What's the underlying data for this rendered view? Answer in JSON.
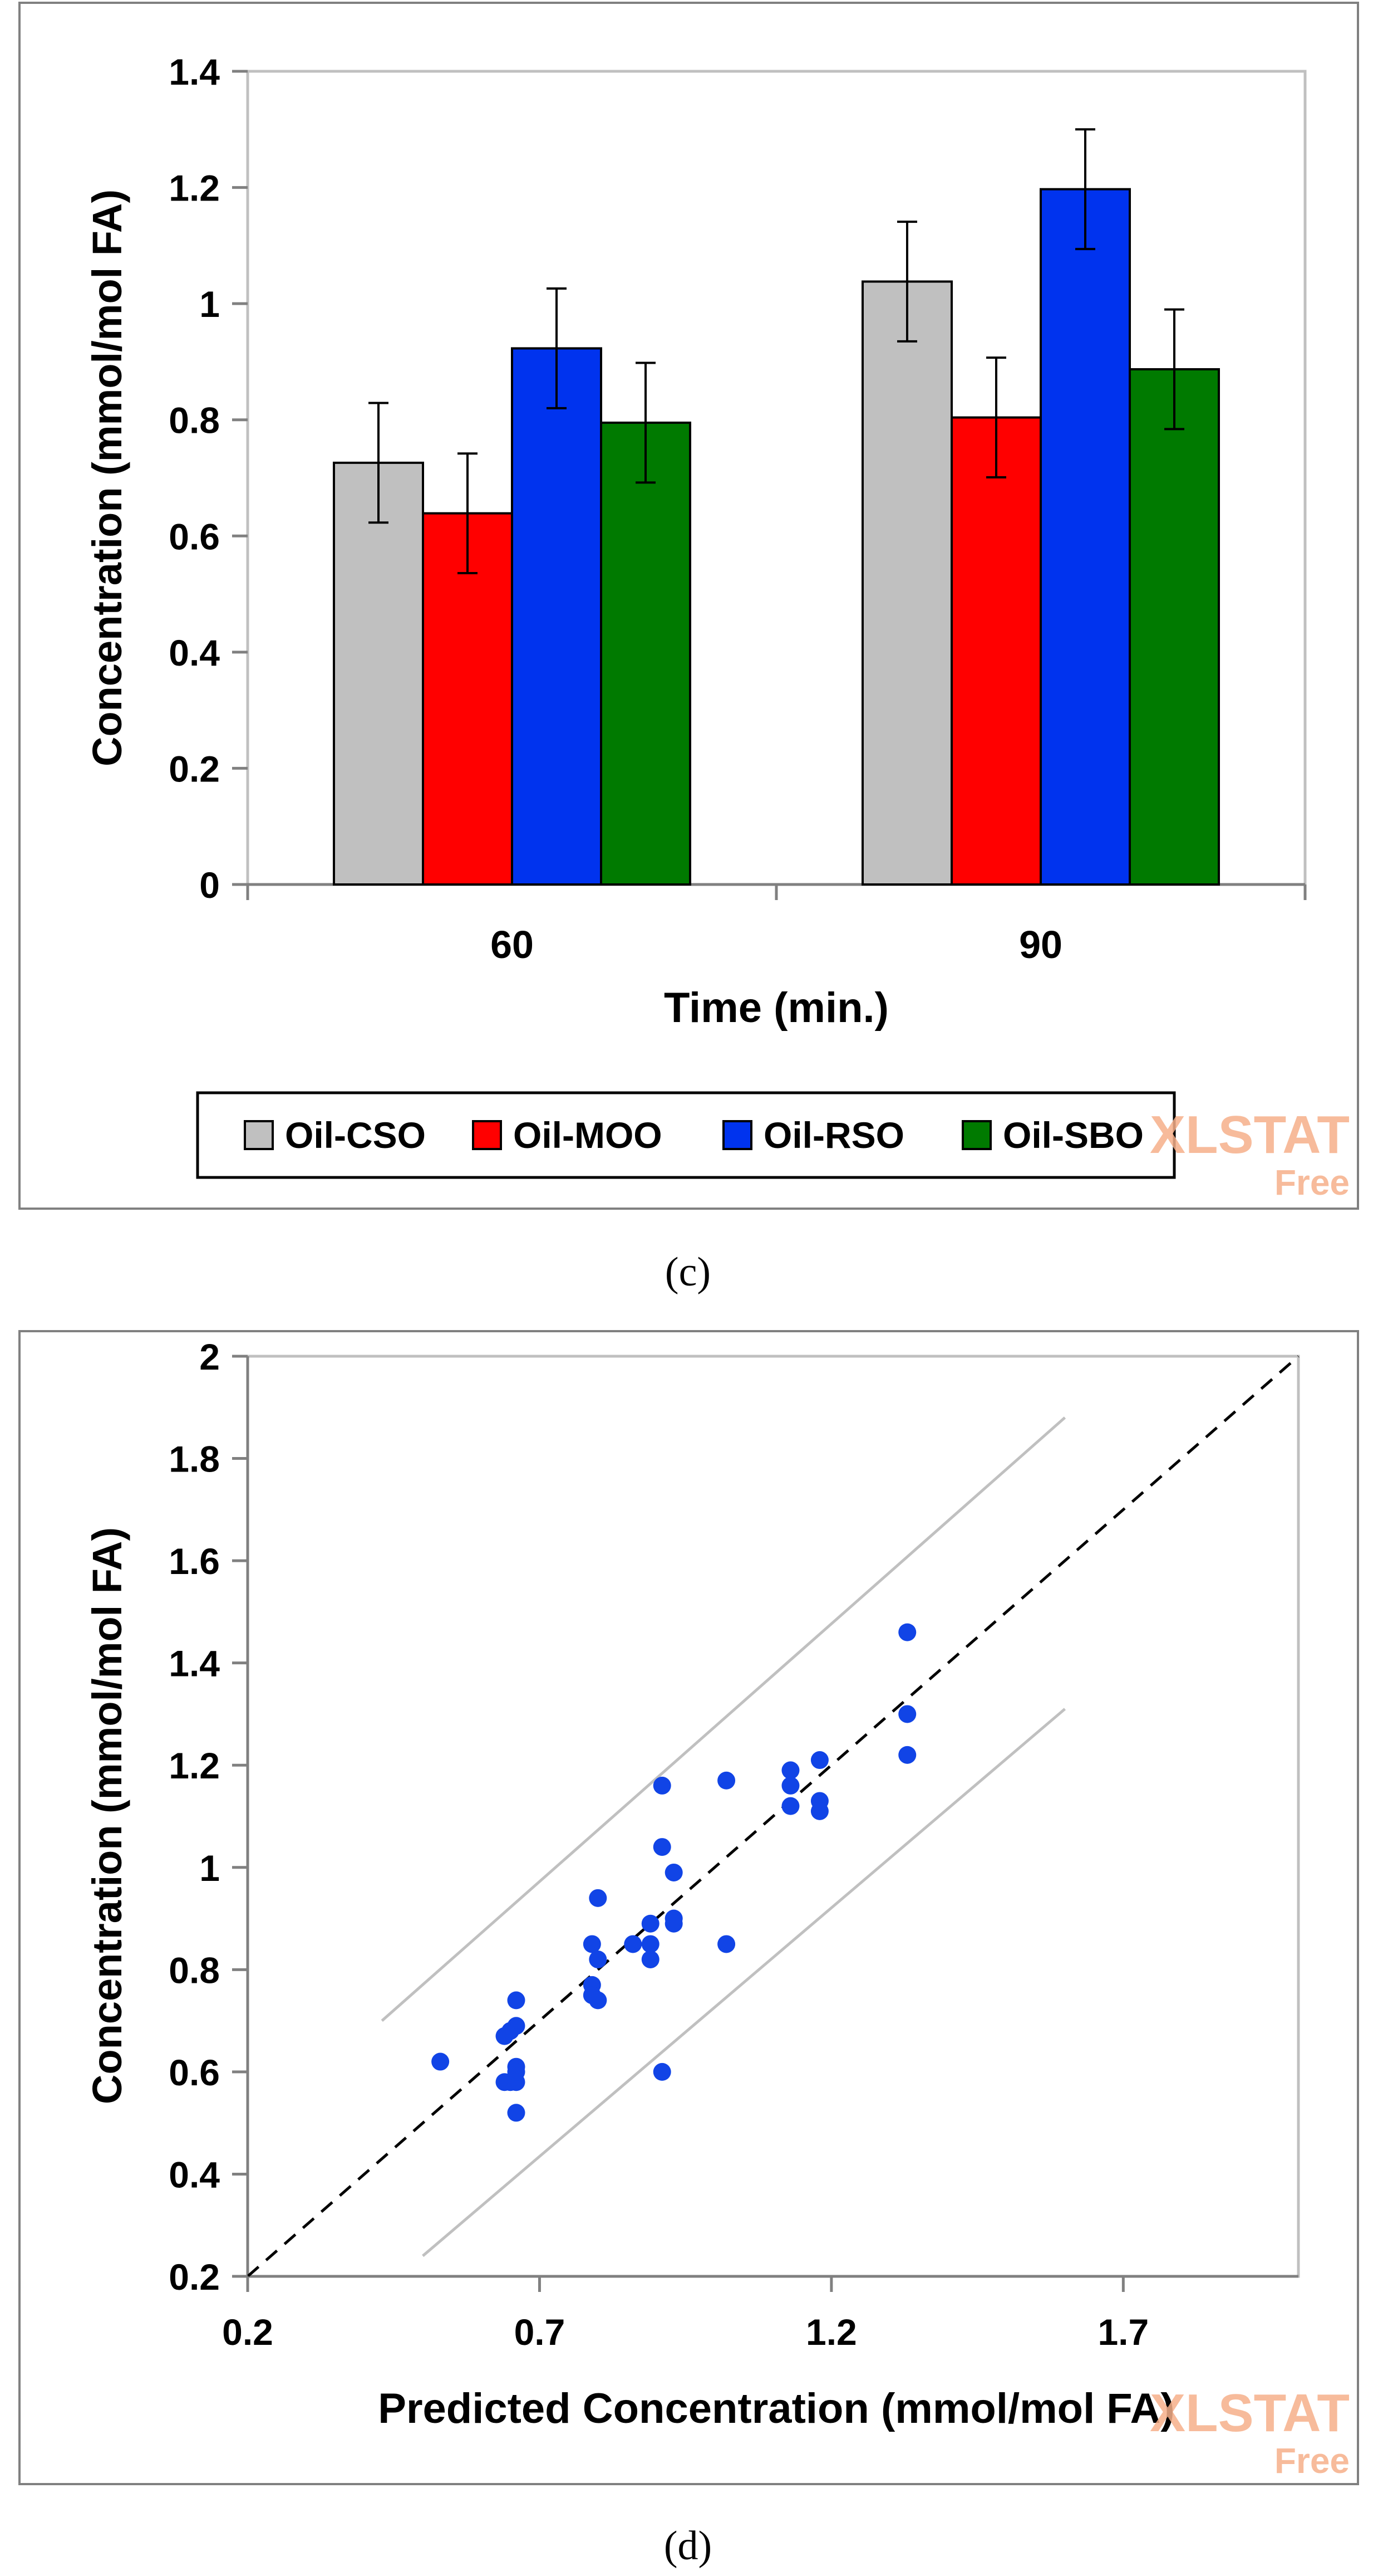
{
  "panel_c": {
    "caption": "(c)",
    "watermark_lines": [
      "XLSTAT",
      "Free"
    ]
  },
  "panel_d": {
    "caption": "(d)",
    "watermark_lines": [
      "XLSTAT",
      "Free"
    ]
  },
  "colors": {
    "Oil-CSO": "#c0c0c0",
    "Oil-MOO": "#ff0000",
    "Oil-RSO": "#0033ee",
    "Oil-SBO": "#007a00",
    "scatter": "#1144e6",
    "bounds": "#c0c0c0"
  },
  "chart_data": [
    {
      "type": "bar",
      "title": "",
      "xlabel": "Time (min.)",
      "ylabel": "Concentration (mmol/mol FA)",
      "categories": [
        "60",
        "90"
      ],
      "ylim": [
        0,
        1.4
      ],
      "yticks": [
        "0",
        "0.2",
        "0.4",
        "0.6",
        "0.8",
        "1",
        "1.2",
        "1.4"
      ],
      "legend_position": "bottom",
      "grid": false,
      "series": [
        {
          "name": "Oil-CSO",
          "values": [
            0.726,
            1.038
          ],
          "errors": [
            0.103,
            0.103
          ]
        },
        {
          "name": "Oil-MOO",
          "values": [
            0.639,
            0.804
          ],
          "errors": [
            0.103,
            0.103
          ]
        },
        {
          "name": "Oil-RSO",
          "values": [
            0.923,
            1.197
          ],
          "errors": [
            0.103,
            0.103
          ]
        },
        {
          "name": "Oil-SBO",
          "values": [
            0.795,
            0.887
          ],
          "errors": [
            0.103,
            0.103
          ]
        }
      ]
    },
    {
      "type": "scatter",
      "title": "",
      "xlabel": "Predicted Concentration (mmol/mol FA)",
      "ylabel": "Concentration (mmol/mol FA)",
      "xlim": [
        0.2,
        2.0
      ],
      "ylim": [
        0.2,
        2.0
      ],
      "xticks": [
        "0.2",
        "0.7",
        "1.2",
        "1.7"
      ],
      "yticks": [
        "0.2",
        "0.4",
        "0.6",
        "0.8",
        "1",
        "1.2",
        "1.4",
        "1.6",
        "1.8",
        "2"
      ],
      "grid": false,
      "identity_line": [
        [
          0.2,
          0.2
        ],
        [
          2.0,
          2.0
        ]
      ],
      "upper_bound": [
        [
          0.43,
          0.7
        ],
        [
          1.6,
          1.88
        ]
      ],
      "lower_bound": [
        [
          0.5,
          0.24
        ],
        [
          1.6,
          1.31
        ]
      ],
      "points": [
        [
          0.53,
          0.62
        ],
        [
          0.64,
          0.58
        ],
        [
          0.65,
          0.58
        ],
        [
          0.66,
          0.58
        ],
        [
          0.64,
          0.67
        ],
        [
          0.65,
          0.68
        ],
        [
          0.66,
          0.69
        ],
        [
          0.66,
          0.74
        ],
        [
          0.66,
          0.61
        ],
        [
          0.66,
          0.52
        ],
        [
          0.66,
          0.6
        ],
        [
          0.79,
          0.85
        ],
        [
          0.8,
          0.82
        ],
        [
          0.8,
          0.94
        ],
        [
          0.79,
          0.77
        ],
        [
          0.79,
          0.75
        ],
        [
          0.8,
          0.74
        ],
        [
          0.86,
          0.85
        ],
        [
          0.89,
          0.85
        ],
        [
          0.89,
          0.82
        ],
        [
          0.89,
          0.89
        ],
        [
          0.91,
          1.16
        ],
        [
          0.91,
          1.04
        ],
        [
          0.91,
          0.6
        ],
        [
          0.93,
          0.99
        ],
        [
          0.93,
          0.9
        ],
        [
          0.93,
          0.89
        ],
        [
          1.02,
          1.17
        ],
        [
          1.02,
          0.85
        ],
        [
          1.13,
          1.19
        ],
        [
          1.13,
          1.16
        ],
        [
          1.13,
          1.12
        ],
        [
          1.18,
          1.21
        ],
        [
          1.18,
          1.13
        ],
        [
          1.18,
          1.11
        ],
        [
          1.33,
          1.46
        ],
        [
          1.33,
          1.3
        ],
        [
          1.33,
          1.22
        ]
      ]
    }
  ]
}
